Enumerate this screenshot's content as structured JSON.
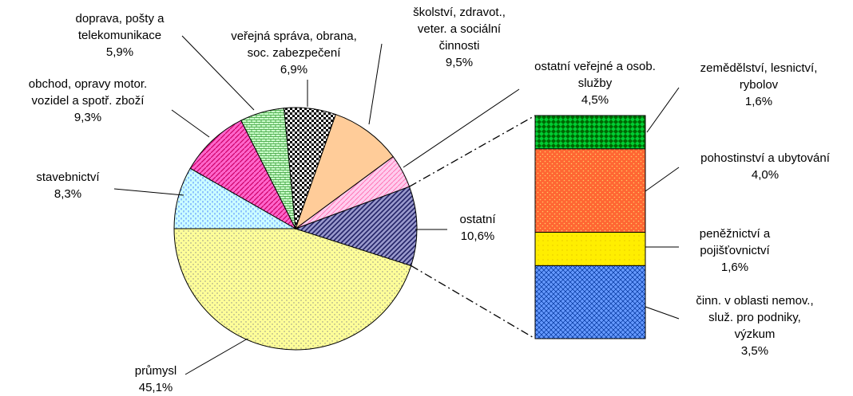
{
  "chart_data": {
    "type": "pie-of-bar",
    "pie": {
      "categories": [
        "průmysl",
        "ostatní",
        "ostatní veřejné a osob.\nslužby",
        "školství, zdravot.,\nveter. a sociální\nčinnosti",
        "veřejná správa, obrana,\nsoc. zabezpečení",
        "doprava, pošty a\ntelekomunikace",
        "obchod, opravy motor.\nvozidel a spotř. zboží",
        "stavebnictví"
      ],
      "values": [
        45.1,
        10.6,
        4.5,
        9.5,
        6.9,
        5.9,
        9.3,
        8.3
      ],
      "value_labels": [
        "45,1%",
        "10,6%",
        "4,5%",
        "9,5%",
        "6,9%",
        "5,9%",
        "9,3%",
        "8,3%"
      ],
      "colors": [
        "#ffff99",
        "#9999cc",
        "#ffccee",
        "#ffcc99",
        "#ffffff",
        "#ccffcc",
        "#ff66cc",
        "#ccffff"
      ]
    },
    "bar": {
      "categories": [
        "zemědělství, lesnictví,\nrybolov",
        "pohostinství a ubytování",
        "peněžnictví a\npojišťovnictví",
        "činn. v oblasti nemov.,\nsluž. pro podniky,\nvýzkum"
      ],
      "values": [
        1.6,
        4.0,
        1.6,
        3.5
      ],
      "value_labels": [
        "1,6%",
        "4,0%",
        "1,6%",
        "3,5%"
      ],
      "colors": [
        "#00cc33",
        "#ff6633",
        "#ffee00",
        "#6699ff"
      ]
    }
  }
}
